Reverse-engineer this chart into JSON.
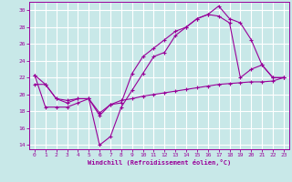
{
  "background_color": "#c8e8e8",
  "grid_color": "#ffffff",
  "line_color": "#990099",
  "marker": "+",
  "xlabel": "Windchill (Refroidissement éolien,°C)",
  "xlim": [
    -0.5,
    23.5
  ],
  "ylim": [
    13.5,
    31.0
  ],
  "yticks": [
    14,
    16,
    18,
    20,
    22,
    24,
    26,
    28,
    30
  ],
  "xticks": [
    0,
    1,
    2,
    3,
    4,
    5,
    6,
    7,
    8,
    9,
    10,
    11,
    12,
    13,
    14,
    15,
    16,
    17,
    18,
    19,
    20,
    21,
    22,
    23
  ],
  "line1_x": [
    0,
    1,
    2,
    3,
    4,
    5,
    6,
    7,
    8,
    9,
    10,
    11,
    12,
    13,
    14,
    15,
    16,
    17,
    18,
    19,
    20,
    21,
    22,
    23
  ],
  "line1_y": [
    22.3,
    18.5,
    18.5,
    18.5,
    19.0,
    19.5,
    14.0,
    15.0,
    18.5,
    20.5,
    22.5,
    24.5,
    25.0,
    27.0,
    28.0,
    29.0,
    29.5,
    30.5,
    29.0,
    28.5,
    26.5,
    23.5,
    22.0,
    22.0
  ],
  "line2_x": [
    0,
    1,
    2,
    3,
    4,
    5,
    6,
    7,
    8,
    9,
    10,
    11,
    12,
    13,
    14,
    15,
    16,
    17,
    18,
    19,
    20,
    21,
    22,
    23
  ],
  "line2_y": [
    22.3,
    21.2,
    19.5,
    19.0,
    19.5,
    19.5,
    17.5,
    18.8,
    19.0,
    22.5,
    24.5,
    25.5,
    26.5,
    27.5,
    28.0,
    29.0,
    29.5,
    29.3,
    28.5,
    22.0,
    23.0,
    23.5,
    22.0,
    22.0
  ],
  "line3_x": [
    0,
    1,
    2,
    3,
    4,
    5,
    6,
    7,
    8,
    9,
    10,
    11,
    12,
    13,
    14,
    15,
    16,
    17,
    18,
    19,
    20,
    21,
    22,
    23
  ],
  "line3_y": [
    21.2,
    21.2,
    19.5,
    19.3,
    19.5,
    19.5,
    17.8,
    18.8,
    19.3,
    19.5,
    19.8,
    20.0,
    20.2,
    20.4,
    20.6,
    20.8,
    21.0,
    21.2,
    21.3,
    21.4,
    21.5,
    21.5,
    21.6,
    22.0
  ]
}
